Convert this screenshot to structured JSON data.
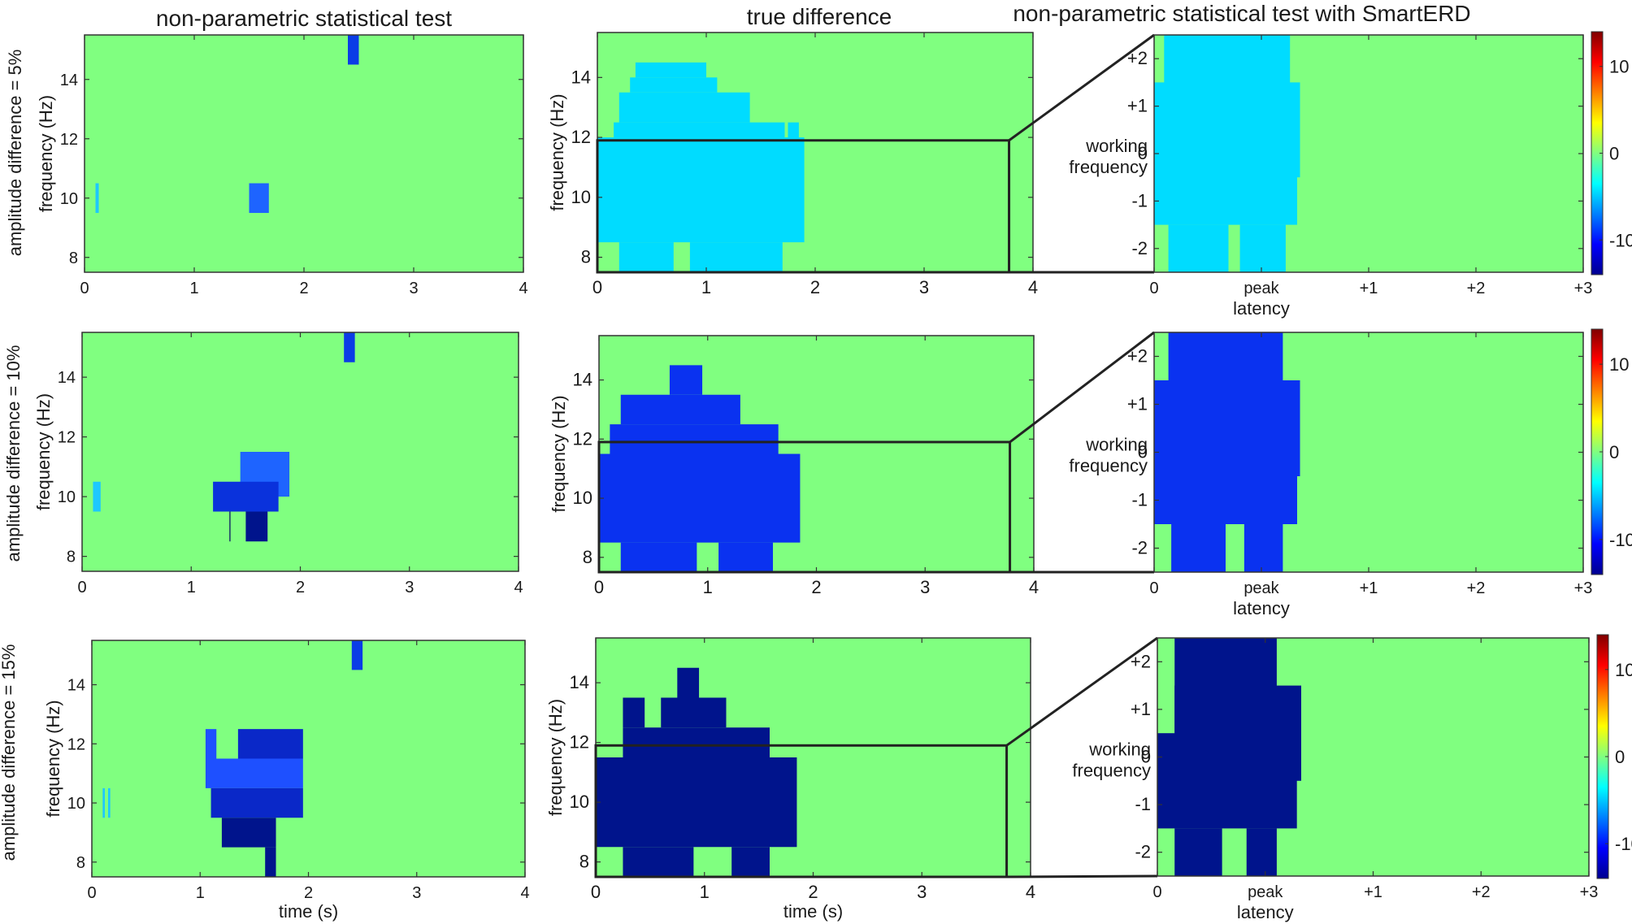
{
  "colors": {
    "background": "#80ff80",
    "light_cyan": "#00dcff",
    "cyan": "#1ec8ff",
    "blue": "#0a32f0",
    "mid_blue": "#1e50ff",
    "dark_blue": "#00148c",
    "frame": "#222222"
  },
  "column_titles": [
    "non-parametric statistical test",
    "true difference",
    "non-parametric statistical test with SmartERD"
  ],
  "row_labels": [
    "amplitude difference = 5%",
    "amplitude difference = 10%",
    "amplitude difference = 15%"
  ],
  "axis_labels": {
    "frequency": "frequency (Hz)",
    "time": "time (s)",
    "working_frequency_1": "working",
    "working_frequency_2": "frequency",
    "peak_latency_1": "peak",
    "peak_latency_2": "latency"
  },
  "chart_data": [
    {
      "type": "heatmap",
      "panel": "non-parametric statistical test, 5%",
      "xlabel": "",
      "ylabel": "frequency (Hz)",
      "xlim": [
        0,
        4
      ],
      "ylim": [
        7.5,
        15.5
      ],
      "xticks": [
        "0",
        "1",
        "2",
        "3",
        "4"
      ],
      "yticks": [
        "8",
        "10",
        "12",
        "14"
      ],
      "background": "#80ff80",
      "regions": [
        {
          "x0": 2.4,
          "x1": 2.5,
          "y0": 14.5,
          "y1": 15.5,
          "color": "#0a3ce6"
        },
        {
          "x0": 0.1,
          "x1": 0.13,
          "y0": 9.5,
          "y1": 10.5,
          "color": "#1ec8ff"
        },
        {
          "x0": 1.5,
          "x1": 1.68,
          "y0": 9.5,
          "y1": 10.5,
          "color": "#1e64ff"
        }
      ]
    },
    {
      "type": "heatmap",
      "panel": "true difference, 5%",
      "xlabel": "",
      "ylabel": "frequency (Hz)",
      "xlim": [
        0,
        4
      ],
      "ylim": [
        7.5,
        15.5
      ],
      "xticks": [
        "0",
        "1",
        "2",
        "3",
        "4"
      ],
      "yticks": [
        "8",
        "10",
        "12",
        "14"
      ],
      "background": "#80ff80",
      "zoom_box": {
        "x0": 0,
        "x1": 3.78,
        "y0": 7.5,
        "y1": 11.9
      },
      "regions": [
        {
          "x0": 0.0,
          "x1": 1.9,
          "y0": 8.5,
          "y1": 11.5,
          "color": "#00dcff"
        },
        {
          "x0": 0.2,
          "x1": 0.7,
          "y0": 7.5,
          "y1": 8.5,
          "color": "#00dcff"
        },
        {
          "x0": 0.85,
          "x1": 1.7,
          "y0": 7.5,
          "y1": 8.5,
          "color": "#00dcff"
        },
        {
          "x0": 0.0,
          "x1": 1.9,
          "y0": 11.5,
          "y1": 12.0,
          "color": "#00dcff"
        },
        {
          "x0": 0.15,
          "x1": 1.72,
          "y0": 12.0,
          "y1": 12.5,
          "color": "#00dcff"
        },
        {
          "x0": 0.2,
          "x1": 1.4,
          "y0": 12.5,
          "y1": 13.5,
          "color": "#00dcff"
        },
        {
          "x0": 0.3,
          "x1": 1.1,
          "y0": 13.5,
          "y1": 14.0,
          "color": "#00dcff"
        },
        {
          "x0": 0.35,
          "x1": 1.0,
          "y0": 14.0,
          "y1": 14.5,
          "color": "#00dcff"
        },
        {
          "x0": 1.75,
          "x1": 1.85,
          "y0": 11.5,
          "y1": 12.5,
          "color": "#00dcff"
        }
      ]
    },
    {
      "type": "heatmap",
      "panel": "SmartERD, 5%",
      "xlabel": "peak latency",
      "ylabel": "working frequency",
      "xlim": [
        0,
        3
      ],
      "ylim": [
        -2.5,
        2.5
      ],
      "xticks": [
        "0",
        "peak",
        "+1",
        "+2",
        "+3"
      ],
      "yticks": [
        "-2",
        "-1",
        "0",
        "+1",
        "+2"
      ],
      "background": "#80ff80",
      "regions": [
        {
          "x0": 0.0,
          "x1": 1.0,
          "y0": -1.5,
          "y1": 0.5,
          "color": "#00dcff"
        },
        {
          "x0": 0.07,
          "x1": 0.95,
          "y0": 0.5,
          "y1": 2.5,
          "color": "#00dcff"
        },
        {
          "x0": 0.0,
          "x1": 1.02,
          "y0": -0.5,
          "y1": 1.5,
          "color": "#00dcff"
        },
        {
          "x0": 0.1,
          "x1": 0.52,
          "y0": -2.5,
          "y1": -1.5,
          "color": "#00dcff"
        },
        {
          "x0": 0.6,
          "x1": 0.92,
          "y0": -2.5,
          "y1": -1.5,
          "color": "#00dcff"
        }
      ],
      "colorbar": {
        "range": [
          -14,
          14
        ],
        "ticks": [
          "10",
          "0",
          "-10"
        ]
      }
    },
    {
      "type": "heatmap",
      "panel": "non-parametric statistical test, 10%",
      "xlabel": "",
      "ylabel": "frequency (Hz)",
      "xlim": [
        0,
        4
      ],
      "ylim": [
        7.5,
        15.5
      ],
      "xticks": [
        "0",
        "1",
        "2",
        "3",
        "4"
      ],
      "yticks": [
        "8",
        "10",
        "12",
        "14"
      ],
      "background": "#80ff80",
      "regions": [
        {
          "x0": 2.4,
          "x1": 2.5,
          "y0": 14.5,
          "y1": 15.5,
          "color": "#0a3ce6"
        },
        {
          "x0": 0.1,
          "x1": 0.17,
          "y0": 9.5,
          "y1": 10.5,
          "color": "#1ec8ff"
        },
        {
          "x0": 1.45,
          "x1": 1.9,
          "y0": 10.0,
          "y1": 11.5,
          "color": "#1e64ff"
        },
        {
          "x0": 1.2,
          "x1": 1.8,
          "y0": 9.5,
          "y1": 10.5,
          "color": "#0a32dc"
        },
        {
          "x0": 1.5,
          "x1": 1.7,
          "y0": 8.5,
          "y1": 9.5,
          "color": "#00148c"
        },
        {
          "x0": 1.35,
          "x1": 1.36,
          "y0": 8.5,
          "y1": 9.5,
          "color": "#0a1e64"
        }
      ]
    },
    {
      "type": "heatmap",
      "panel": "true difference, 10%",
      "xlabel": "",
      "ylabel": "frequency (Hz)",
      "xlim": [
        0,
        4
      ],
      "ylim": [
        7.5,
        15.5
      ],
      "xticks": [
        "0",
        "1",
        "2",
        "3",
        "4"
      ],
      "yticks": [
        "8",
        "10",
        "12",
        "14"
      ],
      "background": "#80ff80",
      "zoom_box": {
        "x0": 0,
        "x1": 3.78,
        "y0": 7.5,
        "y1": 11.9
      },
      "regions": [
        {
          "x0": 0.0,
          "x1": 1.85,
          "y0": 8.5,
          "y1": 11.5,
          "color": "#0a32f0"
        },
        {
          "x0": 0.2,
          "x1": 0.9,
          "y0": 7.5,
          "y1": 8.5,
          "color": "#0a32f0"
        },
        {
          "x0": 1.1,
          "x1": 1.6,
          "y0": 7.5,
          "y1": 8.5,
          "color": "#0a32f0"
        },
        {
          "x0": 0.1,
          "x1": 1.65,
          "y0": 11.5,
          "y1": 12.5,
          "color": "#0a32f0"
        },
        {
          "x0": 0.2,
          "x1": 1.3,
          "y0": 12.5,
          "y1": 13.5,
          "color": "#0a32f0"
        },
        {
          "x0": 0.65,
          "x1": 0.95,
          "y0": 13.5,
          "y1": 14.5,
          "color": "#0a32f0"
        }
      ]
    },
    {
      "type": "heatmap",
      "panel": "SmartERD, 10%",
      "xlabel": "peak latency",
      "ylabel": "working frequency",
      "xlim": [
        0,
        3
      ],
      "ylim": [
        -2.5,
        2.5
      ],
      "xticks": [
        "0",
        "peak",
        "+1",
        "+2",
        "+3"
      ],
      "yticks": [
        "-2",
        "-1",
        "0",
        "+1",
        "+2"
      ],
      "background": "#80ff80",
      "regions": [
        {
          "x0": 0.0,
          "x1": 1.0,
          "y0": -1.5,
          "y1": 0.5,
          "color": "#0a32f0"
        },
        {
          "x0": 0.1,
          "x1": 0.9,
          "y0": 0.5,
          "y1": 2.5,
          "color": "#0a32f0"
        },
        {
          "x0": 0.0,
          "x1": 1.02,
          "y0": -0.5,
          "y1": 1.5,
          "color": "#0a32f0"
        },
        {
          "x0": 0.12,
          "x1": 0.5,
          "y0": -2.5,
          "y1": -1.5,
          "color": "#0a32f0"
        },
        {
          "x0": 0.63,
          "x1": 0.9,
          "y0": -2.5,
          "y1": -1.5,
          "color": "#0a32f0"
        }
      ],
      "colorbar": {
        "range": [
          -14,
          14
        ],
        "ticks": [
          "10",
          "0",
          "-10"
        ]
      }
    },
    {
      "type": "heatmap",
      "panel": "non-parametric statistical test, 15%",
      "xlabel": "time (s)",
      "ylabel": "frequency (Hz)",
      "xlim": [
        0,
        4
      ],
      "ylim": [
        7.5,
        15.5
      ],
      "xticks": [
        "0",
        "1",
        "2",
        "3",
        "4"
      ],
      "yticks": [
        "8",
        "10",
        "12",
        "14"
      ],
      "background": "#80ff80",
      "regions": [
        {
          "x0": 2.4,
          "x1": 2.5,
          "y0": 14.5,
          "y1": 15.5,
          "color": "#0a3ce6"
        },
        {
          "x0": 0.1,
          "x1": 0.12,
          "y0": 9.5,
          "y1": 10.5,
          "color": "#1ec8ff"
        },
        {
          "x0": 0.15,
          "x1": 0.17,
          "y0": 9.5,
          "y1": 10.5,
          "color": "#1ec8ff"
        },
        {
          "x0": 1.05,
          "x1": 1.95,
          "y0": 10.5,
          "y1": 11.5,
          "color": "#1e50ff"
        },
        {
          "x0": 1.05,
          "x1": 1.15,
          "y0": 11.5,
          "y1": 12.5,
          "color": "#1e50ff"
        },
        {
          "x0": 1.35,
          "x1": 1.95,
          "y0": 11.5,
          "y1": 12.5,
          "color": "#0a28c8"
        },
        {
          "x0": 1.1,
          "x1": 1.95,
          "y0": 9.5,
          "y1": 10.5,
          "color": "#0a28c8"
        },
        {
          "x0": 1.2,
          "x1": 1.7,
          "y0": 8.5,
          "y1": 9.5,
          "color": "#00148c"
        },
        {
          "x0": 1.6,
          "x1": 1.7,
          "y0": 7.5,
          "y1": 8.5,
          "color": "#00148c"
        }
      ]
    },
    {
      "type": "heatmap",
      "panel": "true difference, 15%",
      "xlabel": "time (s)",
      "ylabel": "frequency (Hz)",
      "xlim": [
        0,
        4
      ],
      "ylim": [
        7.5,
        15.5
      ],
      "xticks": [
        "0",
        "1",
        "2",
        "3",
        "4"
      ],
      "yticks": [
        "8",
        "10",
        "12",
        "14"
      ],
      "background": "#80ff80",
      "zoom_box": {
        "x0": 0,
        "x1": 3.78,
        "y0": 7.5,
        "y1": 11.9
      },
      "regions": [
        {
          "x0": 0.0,
          "x1": 1.85,
          "y0": 8.5,
          "y1": 11.5,
          "color": "#00148c"
        },
        {
          "x0": 0.25,
          "x1": 0.9,
          "y0": 7.5,
          "y1": 8.5,
          "color": "#00148c"
        },
        {
          "x0": 1.25,
          "x1": 1.6,
          "y0": 7.5,
          "y1": 8.5,
          "color": "#00148c"
        },
        {
          "x0": 0.25,
          "x1": 1.6,
          "y0": 11.5,
          "y1": 12.5,
          "color": "#00148c"
        },
        {
          "x0": 0.25,
          "x1": 0.45,
          "y0": 12.5,
          "y1": 13.5,
          "color": "#00148c"
        },
        {
          "x0": 0.6,
          "x1": 1.2,
          "y0": 12.5,
          "y1": 13.5,
          "color": "#00148c"
        },
        {
          "x0": 0.75,
          "x1": 0.95,
          "y0": 13.5,
          "y1": 14.5,
          "color": "#00148c"
        }
      ]
    },
    {
      "type": "heatmap",
      "panel": "SmartERD, 15%",
      "xlabel": "peak latency",
      "ylabel": "working frequency",
      "xlim": [
        0,
        3
      ],
      "ylim": [
        -2.5,
        2.5
      ],
      "xticks": [
        "0",
        "peak",
        "+1",
        "+2",
        "+3"
      ],
      "yticks": [
        "-2",
        "-1",
        "0",
        "+1",
        "+2"
      ],
      "background": "#80ff80",
      "regions": [
        {
          "x0": 0.0,
          "x1": 0.97,
          "y0": -1.5,
          "y1": 0.5,
          "color": "#00148c"
        },
        {
          "x0": 0.12,
          "x1": 0.83,
          "y0": 0.5,
          "y1": 2.5,
          "color": "#00148c"
        },
        {
          "x0": 0.12,
          "x1": 1.0,
          "y0": -0.5,
          "y1": 1.5,
          "color": "#00148c"
        },
        {
          "x0": 0.12,
          "x1": 0.45,
          "y0": -2.5,
          "y1": -1.5,
          "color": "#00148c"
        },
        {
          "x0": 0.62,
          "x1": 0.83,
          "y0": -2.5,
          "y1": -1.5,
          "color": "#00148c"
        }
      ],
      "colorbar": {
        "range": [
          -14,
          14
        ],
        "ticks": [
          "10",
          "0",
          "-10"
        ]
      }
    }
  ]
}
